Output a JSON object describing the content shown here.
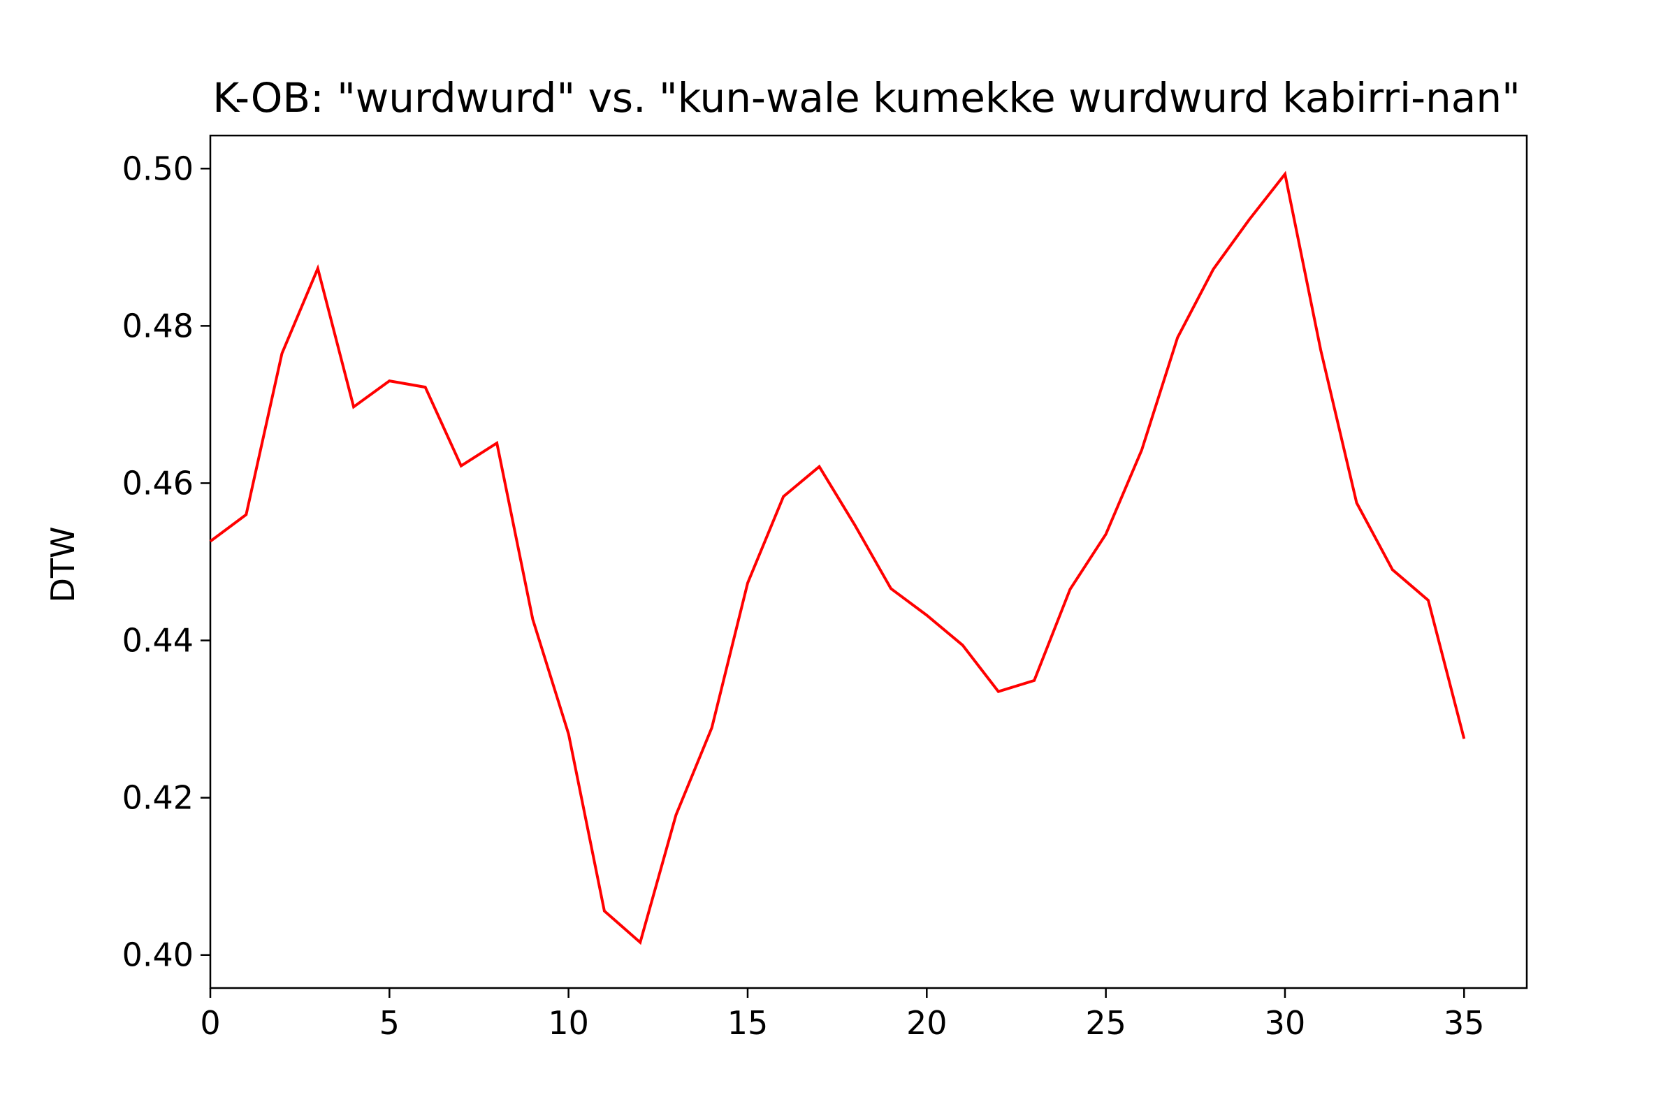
{
  "chart_data": {
    "type": "line",
    "title": "K-OB: \"wurdwurd\" vs. \"kun-wale kumekke wurdwurd kabirri-nan\"",
    "xlabel": "",
    "ylabel": "DTW",
    "xlim": [
      0,
      36.75
    ],
    "ylim": [
      0.3958,
      0.5042
    ],
    "xticks": [
      0,
      5,
      10,
      15,
      20,
      25,
      30,
      35
    ],
    "xtick_labels": [
      "0",
      "5",
      "10",
      "15",
      "20",
      "25",
      "30",
      "35"
    ],
    "yticks": [
      0.4,
      0.42,
      0.44,
      0.46,
      0.48,
      0.5
    ],
    "ytick_labels": [
      "0.40",
      "0.42",
      "0.44",
      "0.46",
      "0.48",
      "0.50"
    ],
    "grid": false,
    "series": [
      {
        "color": "#ff0000",
        "x": [
          0,
          1,
          2,
          3,
          4,
          5,
          6,
          7,
          8,
          9,
          10,
          11,
          12,
          13,
          14,
          15,
          16,
          17,
          18,
          19,
          20,
          21,
          22,
          23,
          24,
          25,
          26,
          27,
          28,
          29,
          30,
          31,
          32,
          33,
          34,
          35
        ],
        "y": [
          0.4526,
          0.456,
          0.4765,
          0.4873,
          0.4697,
          0.473,
          0.4722,
          0.4622,
          0.4651,
          0.4427,
          0.4281,
          0.4056,
          0.4016,
          0.4178,
          0.4289,
          0.4473,
          0.4583,
          0.4621,
          0.4546,
          0.4466,
          0.4432,
          0.4394,
          0.4335,
          0.4349,
          0.4465,
          0.4535,
          0.4642,
          0.4785,
          0.4872,
          0.4935,
          0.4993,
          0.4769,
          0.4575,
          0.449,
          0.4451,
          0.4275
        ]
      }
    ]
  }
}
